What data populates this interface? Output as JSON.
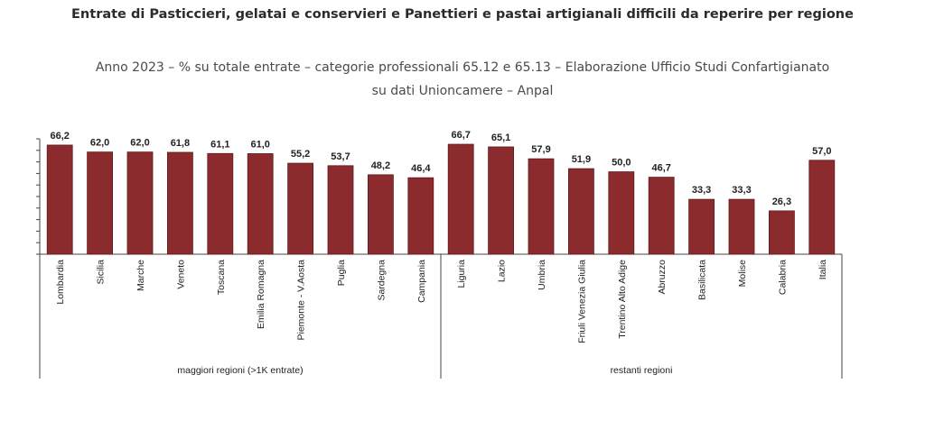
{
  "title": "Entrate di Pasticcieri, gelatai e conservieri e Panettieri e pastai artigianali difficili da reperire per regione",
  "subtitle_line1": "Anno 2023 – % su totale entrate – categorie professionali 65.12 e 65.13 – Elaborazione Ufficio Studi Confartigianato",
  "subtitle_line2": "su dati Unioncamere – Anpal",
  "colors": {
    "bar": "#8b2b2e",
    "bar_border": "#5e1a1c",
    "axis": "#444444"
  },
  "chart_data": {
    "type": "bar",
    "title": "Entrate di Pasticcieri, gelatai e conservieri e Panettieri e pastai artigianali difficili da reperire per regione",
    "categories": [
      "Lombardia",
      "Sicilia",
      "Marche",
      "Veneto",
      "Toscana",
      "Emilia Romagna",
      "Piemonte - V.Aosta",
      "Puglia",
      "Sardegna",
      "Campania",
      "Liguria",
      "Lazio",
      "Umbria",
      "Friuli Venezia Giulia",
      "Trentino Alto Adige",
      "Abruzzo",
      "Basilicata",
      "Molise",
      "Calabria",
      "Italia"
    ],
    "values": [
      66.2,
      62.0,
      62.0,
      61.8,
      61.1,
      61.0,
      55.2,
      53.7,
      48.2,
      46.4,
      66.7,
      65.1,
      57.9,
      51.9,
      50.0,
      46.7,
      33.3,
      33.3,
      26.3,
      57.0
    ],
    "value_labels": [
      "66,2",
      "62,0",
      "62,0",
      "61,8",
      "61,1",
      "61,0",
      "55,2",
      "53,7",
      "48,2",
      "46,4",
      "66,7",
      "65,1",
      "57,9",
      "51,9",
      "50,0",
      "46,7",
      "33,3",
      "33,3",
      "26,3",
      "57,0"
    ],
    "groups": [
      {
        "label": "maggiori regioni (>1K entrate)",
        "count": 10
      },
      {
        "label": "restanti regioni",
        "count": 10
      }
    ],
    "ylim": [
      0,
      70
    ],
    "y_tick_labels": false,
    "grid": false,
    "legend": "none"
  }
}
